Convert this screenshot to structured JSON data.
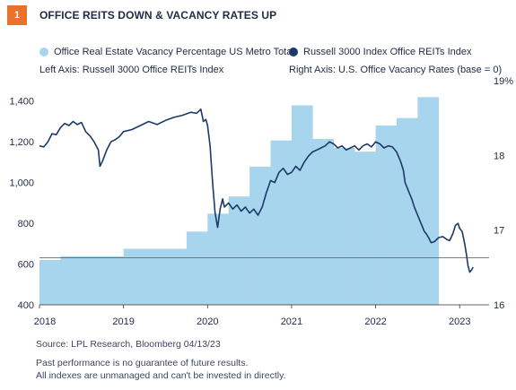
{
  "figure": {
    "number": "1",
    "title": "OFFICE REITS DOWN & VACANCY RATES UP"
  },
  "legend": {
    "vacancy_label": "Office Real Estate Vacancy Percentage US Metro Total",
    "reit_label": "Russell 3000 Index Office REITs Index",
    "left_axis_note": "Left Axis: Russell 3000 Office REITs Index",
    "right_axis_note": "Right Axis: U.S. Office Vacancy Rates (base = 0)"
  },
  "footer": {
    "source": "Source: LPL Research, Bloomberg  04/13/23",
    "disclaimer_1": "Past performance is no guarantee of future results.",
    "disclaimer_2": "All indexes are unmanaged and can't be invested in directly."
  },
  "colors": {
    "bar": "#a8d5ee",
    "line": "#1b3a66",
    "badge": "#e8722c",
    "text": "#1f2a44"
  },
  "chart_data": {
    "type": "bar+line",
    "x_ticks": [
      "2018",
      "2019",
      "2020",
      "2021",
      "2022",
      "2023"
    ],
    "xlim": [
      2018.0,
      2023.35
    ],
    "left_axis": {
      "ticks": [
        "400",
        "600",
        "800",
        "1,000",
        "1,200",
        "1,400"
      ],
      "ylim": [
        400,
        1500
      ]
    },
    "right_axis": {
      "ticks": [
        "16",
        "17",
        "18",
        "19%"
      ],
      "ylim": [
        16.0,
        19.0
      ]
    },
    "reference_line_right": 16.63,
    "series": [
      {
        "name": "Office Real Estate Vacancy Percentage US Metro Total",
        "axis": "right",
        "kind": "step-bar",
        "steps": [
          {
            "start": 2018.0,
            "end": 2018.25,
            "value": 16.6
          },
          {
            "start": 2018.25,
            "end": 2019.0,
            "value": 16.65
          },
          {
            "start": 2019.0,
            "end": 2019.75,
            "value": 16.75
          },
          {
            "start": 2019.75,
            "end": 2020.0,
            "value": 16.98
          },
          {
            "start": 2020.0,
            "end": 2020.25,
            "value": 17.22
          },
          {
            "start": 2020.25,
            "end": 2020.5,
            "value": 17.45
          },
          {
            "start": 2020.5,
            "end": 2020.75,
            "value": 17.85
          },
          {
            "start": 2020.75,
            "end": 2021.0,
            "value": 18.2
          },
          {
            "start": 2021.0,
            "end": 2021.25,
            "value": 18.67
          },
          {
            "start": 2021.25,
            "end": 2021.5,
            "value": 18.22
          },
          {
            "start": 2021.5,
            "end": 2021.75,
            "value": 18.1
          },
          {
            "start": 2021.75,
            "end": 2022.0,
            "value": 18.05
          },
          {
            "start": 2022.0,
            "end": 2022.25,
            "value": 18.4
          },
          {
            "start": 2022.25,
            "end": 2022.5,
            "value": 18.5
          },
          {
            "start": 2022.5,
            "end": 2022.75,
            "value": 18.78
          }
        ]
      },
      {
        "name": "Russell 3000 Index Office REITs Index",
        "axis": "left",
        "kind": "line",
        "points": [
          [
            2018.0,
            1180
          ],
          [
            2018.05,
            1175
          ],
          [
            2018.1,
            1200
          ],
          [
            2018.15,
            1240
          ],
          [
            2018.2,
            1235
          ],
          [
            2018.25,
            1270
          ],
          [
            2018.3,
            1290
          ],
          [
            2018.35,
            1280
          ],
          [
            2018.4,
            1300
          ],
          [
            2018.45,
            1285
          ],
          [
            2018.5,
            1295
          ],
          [
            2018.55,
            1250
          ],
          [
            2018.6,
            1230
          ],
          [
            2018.65,
            1200
          ],
          [
            2018.7,
            1160
          ],
          [
            2018.72,
            1080
          ],
          [
            2018.75,
            1105
          ],
          [
            2018.8,
            1160
          ],
          [
            2018.85,
            1200
          ],
          [
            2018.9,
            1210
          ],
          [
            2018.95,
            1225
          ],
          [
            2019.0,
            1250
          ],
          [
            2019.1,
            1260
          ],
          [
            2019.2,
            1280
          ],
          [
            2019.3,
            1300
          ],
          [
            2019.4,
            1285
          ],
          [
            2019.5,
            1305
          ],
          [
            2019.6,
            1320
          ],
          [
            2019.7,
            1330
          ],
          [
            2019.8,
            1345
          ],
          [
            2019.87,
            1340
          ],
          [
            2019.92,
            1360
          ],
          [
            2019.95,
            1300
          ],
          [
            2019.98,
            1310
          ],
          [
            2020.0,
            1280
          ],
          [
            2020.03,
            1180
          ],
          [
            2020.06,
            1000
          ],
          [
            2020.09,
            850
          ],
          [
            2020.12,
            780
          ],
          [
            2020.15,
            870
          ],
          [
            2020.18,
            920
          ],
          [
            2020.2,
            880
          ],
          [
            2020.25,
            900
          ],
          [
            2020.3,
            870
          ],
          [
            2020.35,
            890
          ],
          [
            2020.4,
            860
          ],
          [
            2020.45,
            880
          ],
          [
            2020.5,
            850
          ],
          [
            2020.55,
            870
          ],
          [
            2020.6,
            840
          ],
          [
            2020.65,
            880
          ],
          [
            2020.7,
            950
          ],
          [
            2020.75,
            1010
          ],
          [
            2020.8,
            1000
          ],
          [
            2020.85,
            1050
          ],
          [
            2020.9,
            1070
          ],
          [
            2020.95,
            1040
          ],
          [
            2021.0,
            1050
          ],
          [
            2021.05,
            1080
          ],
          [
            2021.1,
            1060
          ],
          [
            2021.15,
            1100
          ],
          [
            2021.2,
            1130
          ],
          [
            2021.25,
            1150
          ],
          [
            2021.3,
            1160
          ],
          [
            2021.35,
            1170
          ],
          [
            2021.4,
            1180
          ],
          [
            2021.45,
            1200
          ],
          [
            2021.5,
            1190
          ],
          [
            2021.55,
            1170
          ],
          [
            2021.6,
            1180
          ],
          [
            2021.65,
            1160
          ],
          [
            2021.7,
            1170
          ],
          [
            2021.75,
            1180
          ],
          [
            2021.8,
            1160
          ],
          [
            2021.85,
            1180
          ],
          [
            2021.9,
            1190
          ],
          [
            2021.95,
            1175
          ],
          [
            2022.0,
            1200
          ],
          [
            2022.05,
            1190
          ],
          [
            2022.1,
            1170
          ],
          [
            2022.15,
            1180
          ],
          [
            2022.2,
            1175
          ],
          [
            2022.25,
            1150
          ],
          [
            2022.3,
            1100
          ],
          [
            2022.33,
            1060
          ],
          [
            2022.35,
            1000
          ],
          [
            2022.4,
            950
          ],
          [
            2022.43,
            920
          ],
          [
            2022.46,
            880
          ],
          [
            2022.5,
            840
          ],
          [
            2022.55,
            790
          ],
          [
            2022.58,
            760
          ],
          [
            2022.6,
            750
          ],
          [
            2022.63,
            730
          ],
          [
            2022.66,
            705
          ],
          [
            2022.7,
            710
          ],
          [
            2022.75,
            730
          ],
          [
            2022.8,
            735
          ],
          [
            2022.85,
            720
          ],
          [
            2022.88,
            715
          ],
          [
            2022.92,
            750
          ],
          [
            2022.95,
            790
          ],
          [
            2022.98,
            800
          ],
          [
            2023.0,
            775
          ],
          [
            2023.03,
            760
          ],
          [
            2023.06,
            700
          ],
          [
            2023.08,
            650
          ],
          [
            2023.1,
            590
          ],
          [
            2023.12,
            560
          ],
          [
            2023.14,
            570
          ],
          [
            2023.16,
            585
          ]
        ]
      }
    ]
  }
}
